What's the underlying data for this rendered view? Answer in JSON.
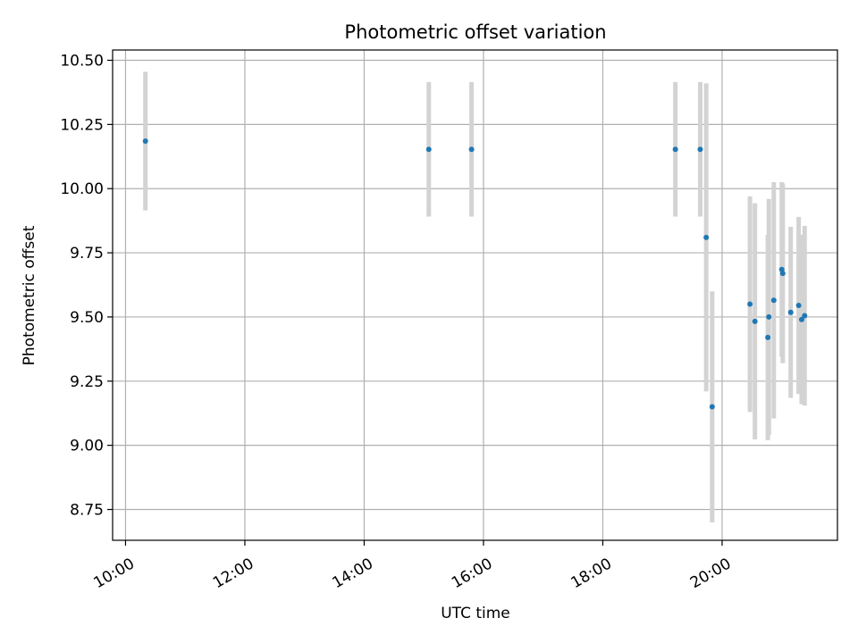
{
  "chart_data": {
    "type": "scatter",
    "title": "Photometric offset variation",
    "xlabel": "UTC time",
    "ylabel": "Photometric offset",
    "xlim": [
      "09:47",
      "21:56"
    ],
    "ylim": [
      8.63,
      10.54
    ],
    "x_ticks": [
      "10:00",
      "12:00",
      "14:00",
      "16:00",
      "18:00",
      "20:00"
    ],
    "y_ticks": [
      "8.75",
      "9.00",
      "9.25",
      "9.50",
      "9.75",
      "10.00",
      "10.25",
      "10.50"
    ],
    "grid": true,
    "colors": {
      "points": "#1f77b4",
      "error_bars": "#d3d3d3",
      "grid": "#b0b0b0"
    },
    "points": [
      {
        "x": "10:20",
        "y": 10.185,
        "yerr": 0.27
      },
      {
        "x": "15:05",
        "y": 10.153,
        "yerr": 0.262
      },
      {
        "x": "15:48",
        "y": 10.153,
        "yerr": 0.262
      },
      {
        "x": "19:13",
        "y": 10.153,
        "yerr": 0.262
      },
      {
        "x": "19:38",
        "y": 10.153,
        "yerr": 0.262
      },
      {
        "x": "19:44",
        "y": 9.81,
        "yerr": 0.6
      },
      {
        "x": "19:50",
        "y": 9.15,
        "yerr": 0.45
      },
      {
        "x": "20:28",
        "y": 9.55,
        "yerr": 0.42
      },
      {
        "x": "20:33",
        "y": 9.483,
        "yerr": 0.46
      },
      {
        "x": "20:46",
        "y": 9.42,
        "yerr": 0.4
      },
      {
        "x": "20:47",
        "y": 9.5,
        "yerr": 0.46
      },
      {
        "x": "20:52",
        "y": 9.565,
        "yerr": 0.46
      },
      {
        "x": "21:00",
        "y": 9.685,
        "yerr": 0.34
      },
      {
        "x": "21:01",
        "y": 9.67,
        "yerr": 0.35
      },
      {
        "x": "21:09",
        "y": 9.518,
        "yerr": 0.333
      },
      {
        "x": "21:17",
        "y": 9.545,
        "yerr": 0.345
      },
      {
        "x": "21:20",
        "y": 9.49,
        "yerr": 0.33
      },
      {
        "x": "21:23",
        "y": 9.505,
        "yerr": 0.35
      }
    ]
  }
}
